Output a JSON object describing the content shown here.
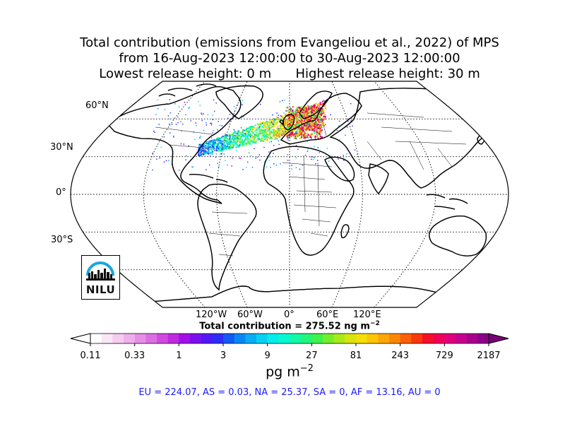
{
  "title": {
    "line1": "Total contribution (emissions from Evangeliou et al., 2022) of MPS",
    "line2": "from 16-Aug-2023 12:00:00 to 30-Aug-2023 12:00:00",
    "line3": "Lowest release height: 0 m      Highest release height: 30 m"
  },
  "map": {
    "projection": "robinson",
    "lat_labels": [
      "60°N",
      "30°N",
      "0°",
      "30°S"
    ],
    "lon_labels": [
      "120°W",
      "60°W",
      "0°",
      "60°E",
      "120°E"
    ],
    "gridlines": "dotted",
    "plume_region": "North Atlantic / Europe"
  },
  "total_label": "Total contribution = 275.52 ng m",
  "total_exponent": "−2",
  "colorbar": {
    "ticks": [
      "0.11",
      "0.33",
      "1",
      "3",
      "9",
      "27",
      "81",
      "243",
      "729",
      "2187"
    ],
    "unit_base": "pg m",
    "unit_exponent": "−2",
    "colors": [
      "#ffffff",
      "#fbe6f7",
      "#f5ccf0",
      "#eeb0ea",
      "#e78fe6",
      "#dc6ee3",
      "#cf4bdf",
      "#be2be0",
      "#a30fe8",
      "#7a10ee",
      "#5317f5",
      "#2f2cf6",
      "#1558f5",
      "#0a86f4",
      "#08adf3",
      "#07d0f0",
      "#06ecea",
      "#05f8d2",
      "#10f8a8",
      "#22f57a",
      "#3ef14c",
      "#72ee2b",
      "#a8ea19",
      "#d6e60d",
      "#f4df08",
      "#fcc506",
      "#fca705",
      "#fb8605",
      "#fa6108",
      "#f8380d",
      "#f50f2a",
      "#f00058",
      "#e0007c",
      "#c6008f",
      "#a8008e",
      "#8a0086"
    ],
    "extend_left": "#ffffff",
    "extend_right": "#7a0077"
  },
  "regions": "EU = 224.07,  AS = 0.03,  NA = 25.37,  SA = 0,  AF = 13.16,  AU = 0",
  "logo": {
    "text": "NILU",
    "arc_color": "#19a6e0"
  }
}
